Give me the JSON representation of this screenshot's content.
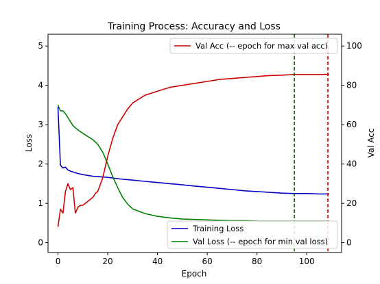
{
  "chart_data": {
    "type": "line",
    "title": "Training Process: Accuracy and Loss",
    "xlabel": "Epoch",
    "ylabel_left": "Loss",
    "ylabel_right": "Val Acc",
    "xlim": [
      -4,
      114
    ],
    "ylim_left": [
      -0.25,
      5.3
    ],
    "ylim_right": [
      -5,
      106
    ],
    "x_ticks": [
      0,
      20,
      40,
      60,
      80,
      100
    ],
    "y_ticks_left": [
      0,
      1,
      2,
      3,
      4,
      5
    ],
    "y_ticks_right": [
      0,
      20,
      40,
      60,
      80,
      100
    ],
    "series": [
      {
        "name": "Training Loss",
        "axis": "left",
        "color": "#0000c8",
        "x": [
          0,
          1,
          2,
          3,
          4,
          5,
          6,
          8,
          10,
          12,
          14,
          16,
          18,
          20,
          25,
          30,
          35,
          40,
          45,
          50,
          55,
          60,
          65,
          70,
          75,
          80,
          85,
          90,
          95,
          100,
          105,
          109
        ],
        "y": [
          3.45,
          1.97,
          1.9,
          1.92,
          1.85,
          1.82,
          1.8,
          1.76,
          1.73,
          1.71,
          1.69,
          1.68,
          1.67,
          1.66,
          1.62,
          1.59,
          1.56,
          1.53,
          1.5,
          1.47,
          1.44,
          1.41,
          1.38,
          1.35,
          1.32,
          1.3,
          1.28,
          1.26,
          1.25,
          1.25,
          1.24,
          1.24
        ]
      },
      {
        "name": "Val Loss (-- epoch for min val loss)",
        "axis": "left",
        "color": "#008000",
        "x": [
          0,
          1,
          2,
          3,
          4,
          5,
          6,
          7,
          8,
          10,
          12,
          14,
          16,
          18,
          20,
          22,
          24,
          26,
          28,
          30,
          35,
          40,
          45,
          50,
          55,
          60,
          65,
          70,
          75,
          80,
          85,
          90,
          95,
          100,
          105,
          109
        ],
        "y": [
          3.5,
          3.35,
          3.35,
          3.28,
          3.18,
          3.08,
          2.98,
          2.92,
          2.87,
          2.78,
          2.7,
          2.62,
          2.5,
          2.3,
          2.0,
          1.68,
          1.4,
          1.15,
          0.98,
          0.86,
          0.74,
          0.67,
          0.63,
          0.6,
          0.59,
          0.58,
          0.57,
          0.56,
          0.56,
          0.55,
          0.55,
          0.55,
          0.55,
          0.55,
          0.55,
          0.55
        ]
      },
      {
        "name": "Val Acc (-- epoch for max val acc)",
        "axis": "right",
        "color": "#cc0000",
        "x": [
          0,
          1,
          2,
          3,
          4,
          5,
          6,
          7,
          8,
          9,
          10,
          12,
          14,
          15,
          16,
          18,
          20,
          22,
          24,
          26,
          28,
          30,
          35,
          40,
          45,
          50,
          55,
          60,
          65,
          70,
          75,
          80,
          85,
          90,
          95,
          100,
          105,
          109
        ],
        "y": [
          8,
          17,
          15,
          26,
          30,
          27,
          28,
          15,
          18,
          19,
          19,
          21,
          23,
          25,
          26,
          33,
          44,
          53,
          60,
          64,
          68,
          71,
          75,
          77,
          79,
          80,
          81,
          82,
          83,
          83.5,
          84,
          84.5,
          85,
          85.2,
          85.5,
          85.5,
          85.5,
          85.6
        ]
      }
    ],
    "vlines": [
      {
        "x": 95,
        "color": "#006400",
        "style": "dashed",
        "axis": "left"
      },
      {
        "x": 108.5,
        "color": "#cc0000",
        "style": "dashed",
        "axis": "right"
      }
    ],
    "legends": [
      {
        "placement": "top-right",
        "entries": [
          "Val Acc (-- epoch for max val acc)"
        ]
      },
      {
        "placement": "lower-right",
        "entries": [
          "Training Loss",
          "Val Loss (-- epoch for min val loss)"
        ]
      }
    ],
    "grid": false
  }
}
